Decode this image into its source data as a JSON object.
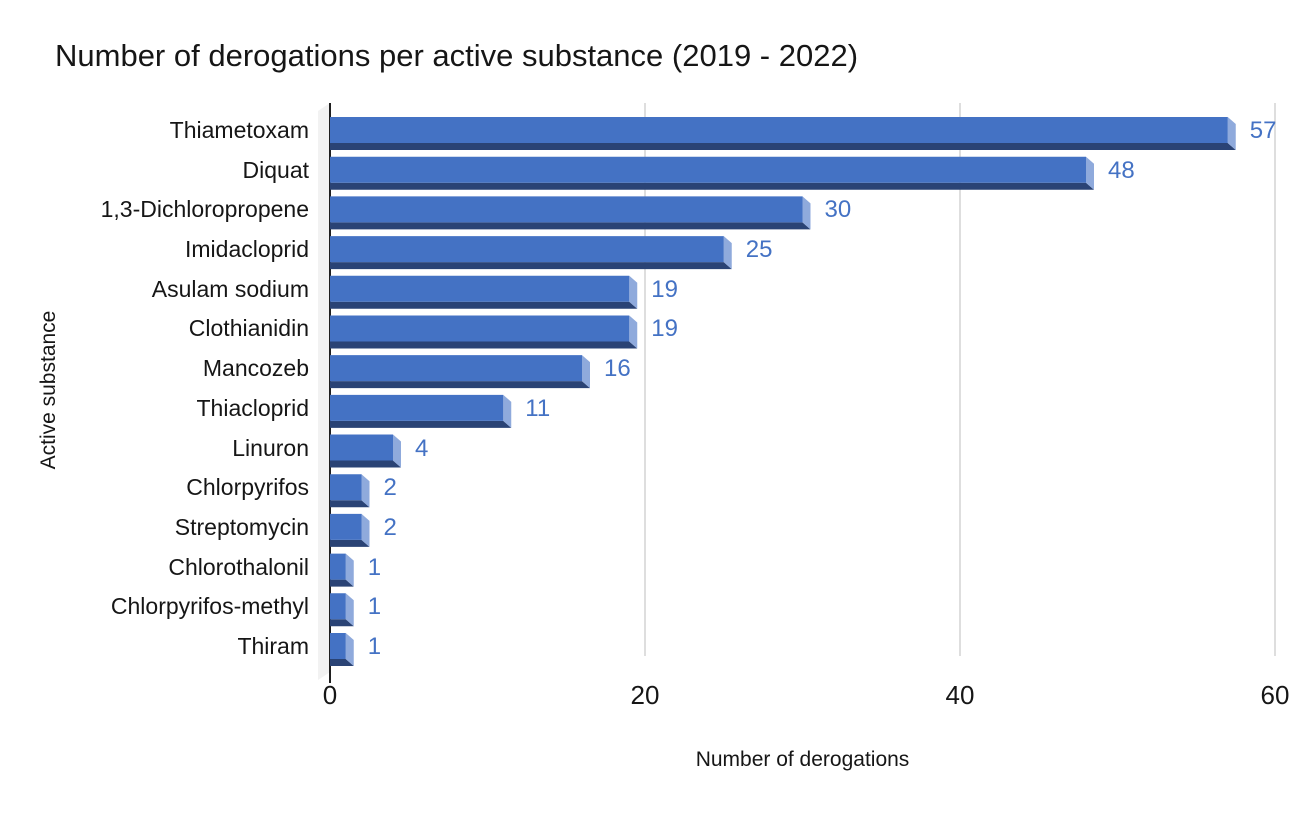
{
  "chart_data": {
    "type": "bar",
    "orientation": "horizontal",
    "style": "3d-bevel",
    "title": "Number of derogations per active substance (2019 - 2022)",
    "xlabel": "Number of derogations",
    "ylabel": "Active substance",
    "categories": [
      "Thiametoxam",
      "Diquat",
      "1,3-Dichloropropene",
      "Imidacloprid",
      "Asulam sodium",
      "Clothianidin",
      "Mancozeb",
      "Thiacloprid",
      "Linuron",
      "Chlorpyrifos",
      "Streptomycin",
      "Chlorothalonil",
      "Chlorpyrifos-methyl",
      "Thiram"
    ],
    "values": [
      57,
      48,
      30,
      25,
      19,
      19,
      16,
      11,
      4,
      2,
      2,
      1,
      1,
      1
    ],
    "data_labels": [
      57,
      48,
      30,
      25,
      19,
      19,
      16,
      11,
      4,
      2,
      2,
      1,
      1,
      1
    ],
    "xlim": [
      0,
      60
    ],
    "xticks": [
      0,
      20,
      40,
      60
    ],
    "grid": "vertical-major",
    "legend": null,
    "colors": {
      "bar_face": "#4472C4",
      "bar_bottom": "#2A4375",
      "bar_end_cap": "#8FAADC",
      "value_label": "#4472C4",
      "gridline": "#D6D6D6",
      "wall": "#F2F2F2",
      "axis_line": "#1F1F1F",
      "text": "#161616",
      "background": "#FFFFFF"
    }
  }
}
